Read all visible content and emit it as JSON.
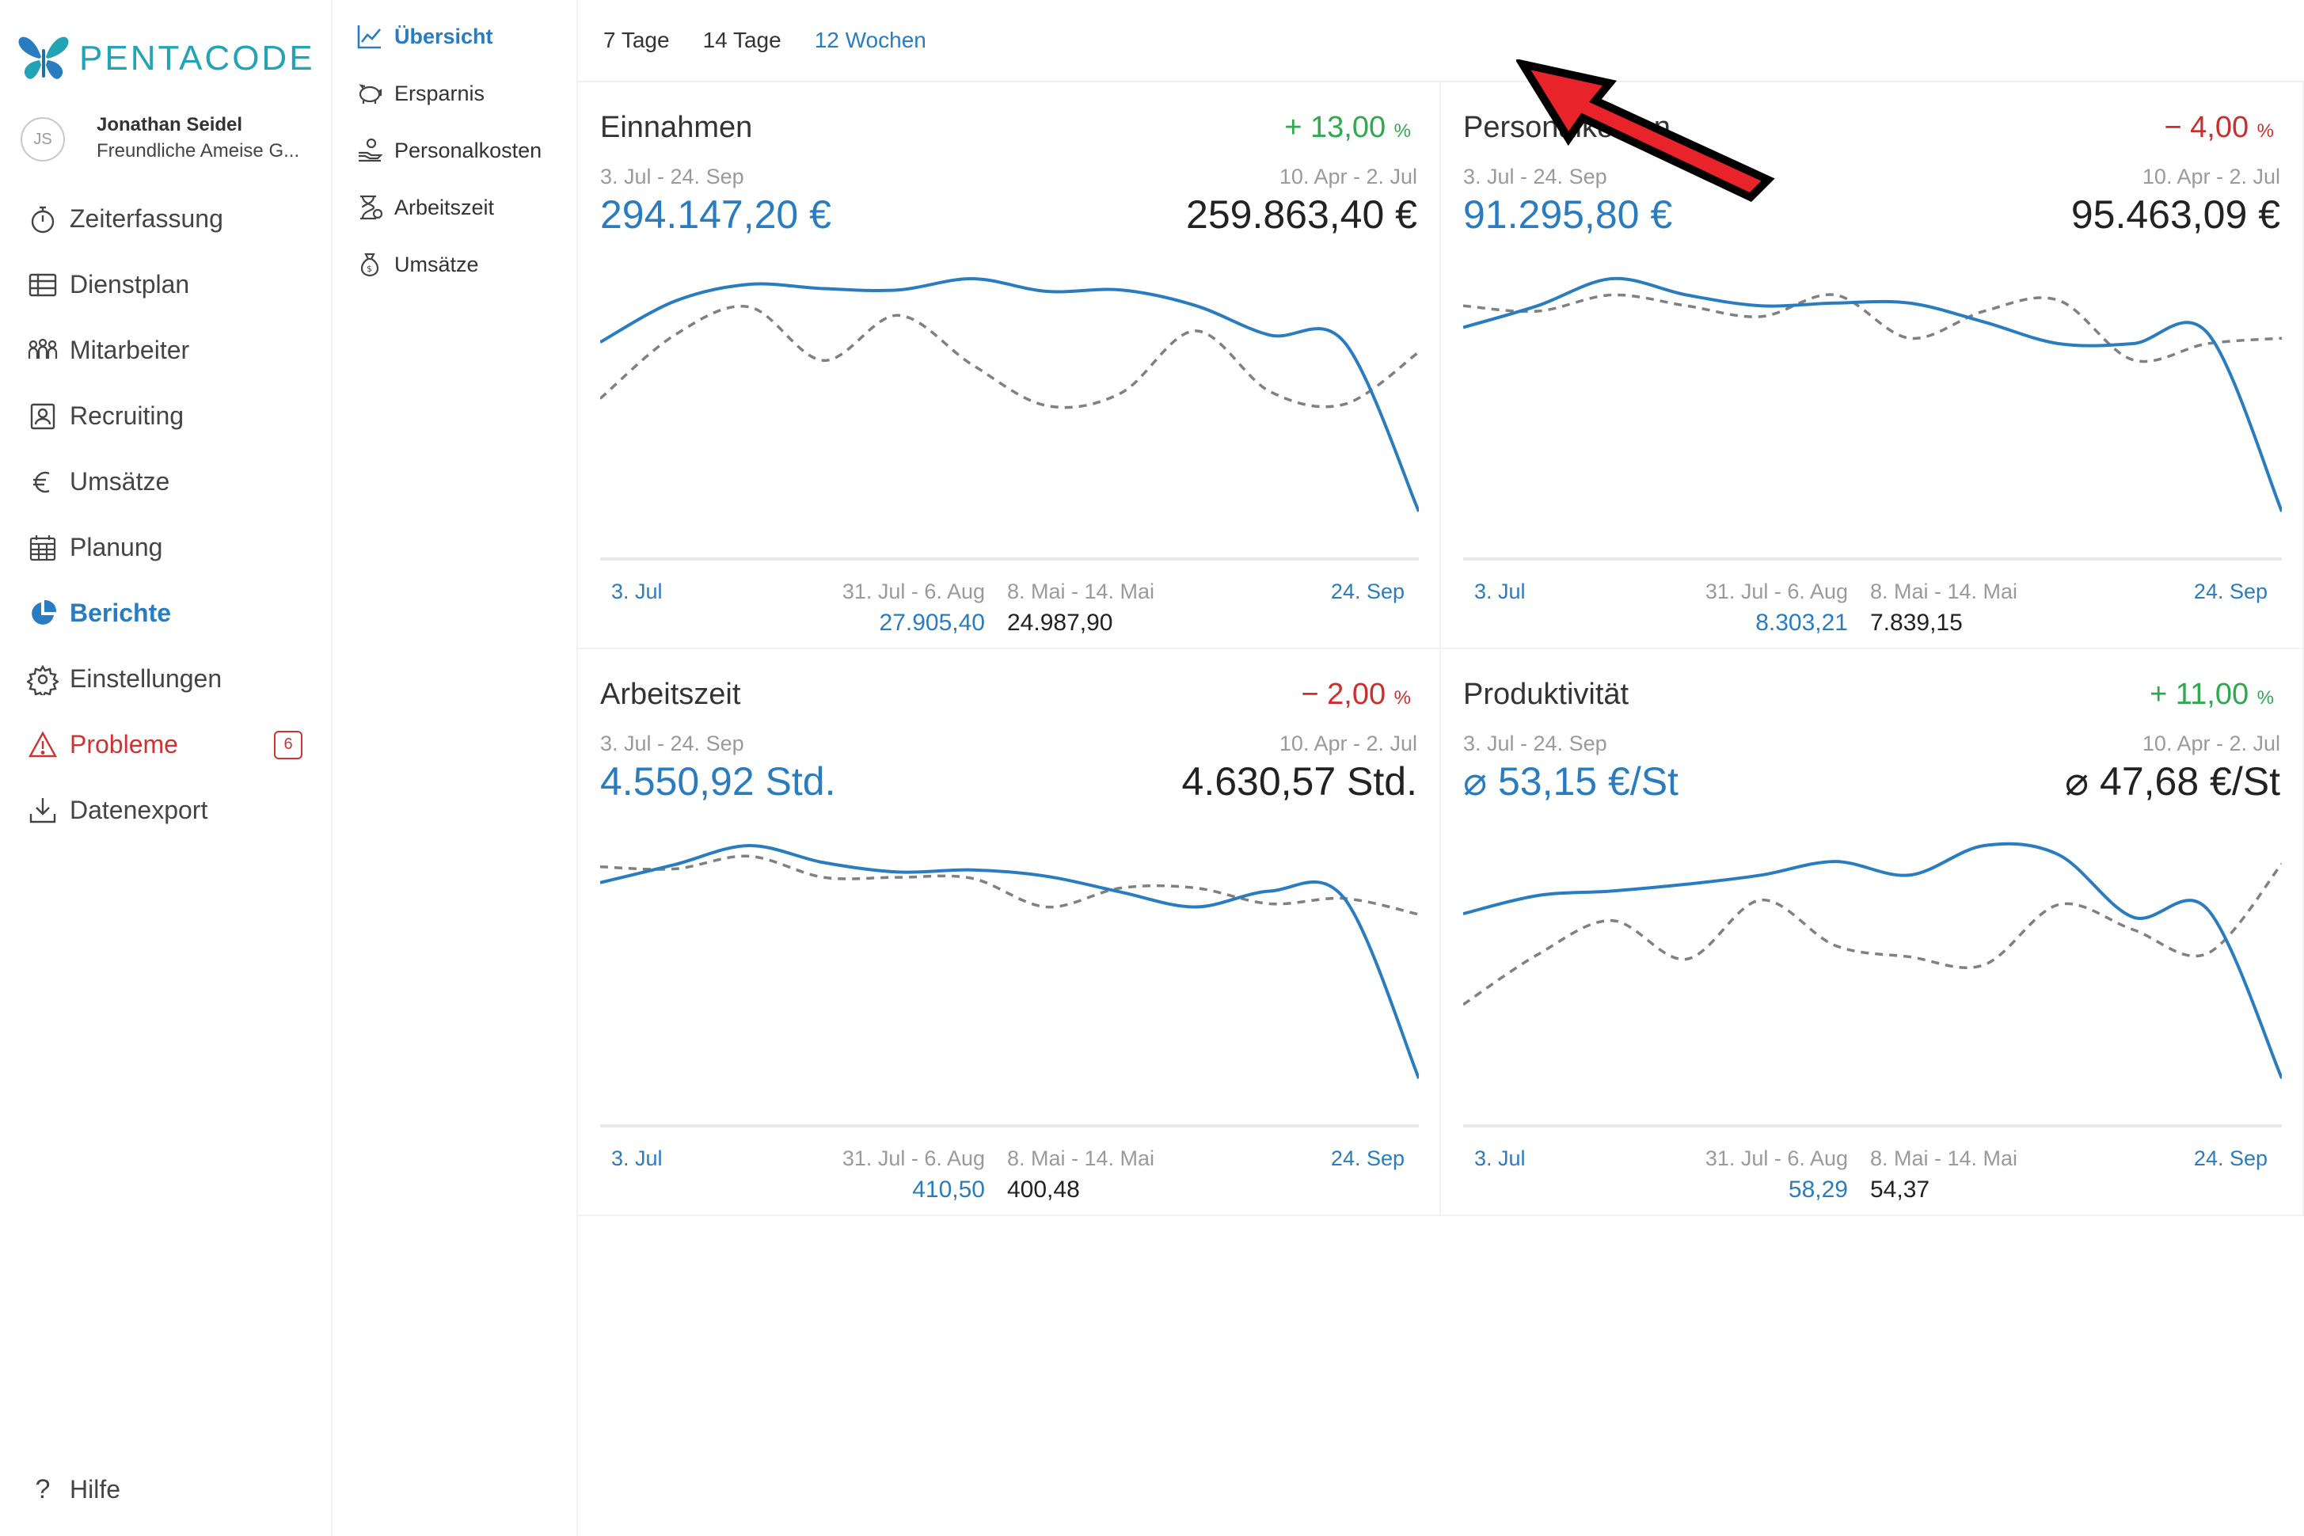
{
  "brand": {
    "name": "PENTACODE",
    "accent": "#23a3b6"
  },
  "user": {
    "initials": "JS",
    "name": "Jonathan Seidel",
    "org": "Freundliche Ameise G..."
  },
  "nav": [
    {
      "label": "Zeiterfassung",
      "icon": "stopwatch-icon"
    },
    {
      "label": "Dienstplan",
      "icon": "table-icon"
    },
    {
      "label": "Mitarbeiter",
      "icon": "people-icon"
    },
    {
      "label": "Recruiting",
      "icon": "id-card-icon"
    },
    {
      "label": "Umsätze",
      "icon": "euro-icon"
    },
    {
      "label": "Planung",
      "icon": "calendar-icon"
    },
    {
      "label": "Berichte",
      "icon": "pie-chart-icon",
      "active": true
    },
    {
      "label": "Einstellungen",
      "icon": "gear-icon"
    },
    {
      "label": "Probleme",
      "icon": "warning-icon",
      "badge": "6"
    },
    {
      "label": "Datenexport",
      "icon": "download-icon"
    }
  ],
  "help": "Hilfe",
  "subnav": [
    {
      "label": "Übersicht",
      "icon": "line-chart-icon",
      "active": true
    },
    {
      "label": "Ersparnis",
      "icon": "piggy-bank-icon"
    },
    {
      "label": "Personalkosten",
      "icon": "hand-coins-icon"
    },
    {
      "label": "Arbeitszeit",
      "icon": "hourglass-icon"
    },
    {
      "label": "Umsätze",
      "icon": "money-bag-icon"
    }
  ],
  "tabs": [
    {
      "label": "7 Tage"
    },
    {
      "label": "14 Tage"
    },
    {
      "label": "12 Wochen",
      "active": true
    }
  ],
  "colors": {
    "current": "#2a7cc0",
    "previous": "#808080",
    "up": "#2fa84f",
    "down": "#c9302c"
  },
  "cards": [
    {
      "title": "Einnahmen",
      "change": "+ 13,00",
      "change_unit": "%",
      "direction": "up",
      "range_current": "3. Jul - 24. Sep",
      "range_previous": "10. Apr - 2. Jul",
      "value_current": "294.147,20 €",
      "value_previous": "259.863,40 €",
      "x_start": "3. Jul",
      "x_end": "24. Sep",
      "best_current_range": "31. Jul - 6. Aug",
      "best_previous_range": "8. Mai - 14. Mai",
      "best_current_value": "27.905,40",
      "best_previous_value": "24.987,90",
      "chart_data": {
        "type": "line",
        "series": [
          {
            "values": [
              22000,
              24900,
              26100,
              25800,
              25700,
              26500,
              25600,
              25700,
              24600,
              22500,
              22000,
              10000
            ]
          },
          {
            "values": [
              18000,
              22500,
              24500,
              20700,
              23900,
              20400,
              17500,
              18400,
              22800,
              18500,
              17600,
              21300
            ]
          }
        ]
      }
    },
    {
      "title": "Personalkosten",
      "change": "− 4,00",
      "change_unit": "%",
      "direction": "down",
      "range_current": "3. Jul - 24. Sep",
      "range_previous": "10. Apr - 2. Jul",
      "value_current": "91.295,80 €",
      "value_previous": "95.463,09 €",
      "x_start": "3. Jul",
      "x_end": "24. Sep",
      "best_current_range": "31. Jul - 6. Aug",
      "best_previous_range": "8. Mai - 14. Mai",
      "best_current_value": "8.303,21",
      "best_previous_value": "7.839,15",
      "chart_data": {
        "type": "line",
        "series": [
          {
            "values": [
              7400,
              7800,
              8300,
              8000,
              7800,
              7850,
              7850,
              7500,
              7100,
              7100,
              7300,
              4000
            ]
          },
          {
            "values": [
              7800,
              7700,
              8000,
              7800,
              7600,
              8000,
              7200,
              7700,
              7900,
              6800,
              7100,
              7200
            ]
          }
        ]
      }
    },
    {
      "title": "Arbeitszeit",
      "change": "− 2,00",
      "change_unit": "%",
      "direction": "down",
      "range_current": "3. Jul - 24. Sep",
      "range_previous": "10. Apr - 2. Jul",
      "value_current": "4.550,92 Std.",
      "value_previous": "4.630,57 Std.",
      "x_start": "3. Jul",
      "x_end": "24. Sep",
      "best_current_range": "31. Jul - 6. Aug",
      "best_previous_range": "8. Mai - 14. Mai",
      "best_current_value": "410,50",
      "best_previous_value": "400,48",
      "chart_data": {
        "type": "line",
        "series": [
          {
            "values": [
              375,
              392,
              410,
              394,
              385,
              387,
              381,
              366,
              352,
              367,
              360,
              190
            ]
          },
          {
            "values": [
              390,
              388,
              400,
              380,
              380,
              379,
              352,
              370,
              370,
              355,
              360,
              345
            ]
          }
        ]
      }
    },
    {
      "title": "Produktivität",
      "change": "+ 11,00",
      "change_unit": "%",
      "direction": "up",
      "range_current": "3. Jul - 24. Sep",
      "range_previous": "10. Apr - 2. Jul",
      "value_current": "⌀ 53,15 €/St",
      "value_previous": "⌀ 47,68 €/St",
      "x_start": "3. Jul",
      "x_end": "24. Sep",
      "best_current_range": "31. Jul - 6. Aug",
      "best_previous_range": "8. Mai - 14. Mai",
      "best_current_value": "58,29",
      "best_previous_value": "54,37",
      "chart_data": {
        "type": "line",
        "series": [
          {
            "values": [
              52.0,
              53.6,
              54.0,
              54.6,
              55.4,
              56.6,
              55.4,
              58.0,
              57.2,
              51.7,
              52.4,
              37.5
            ]
          },
          {
            "values": [
              44.0,
              48.4,
              51.4,
              48.0,
              53.2,
              49.2,
              48.2,
              47.5,
              52.8,
              50.6,
              48.5,
              56.4
            ]
          }
        ]
      }
    }
  ]
}
